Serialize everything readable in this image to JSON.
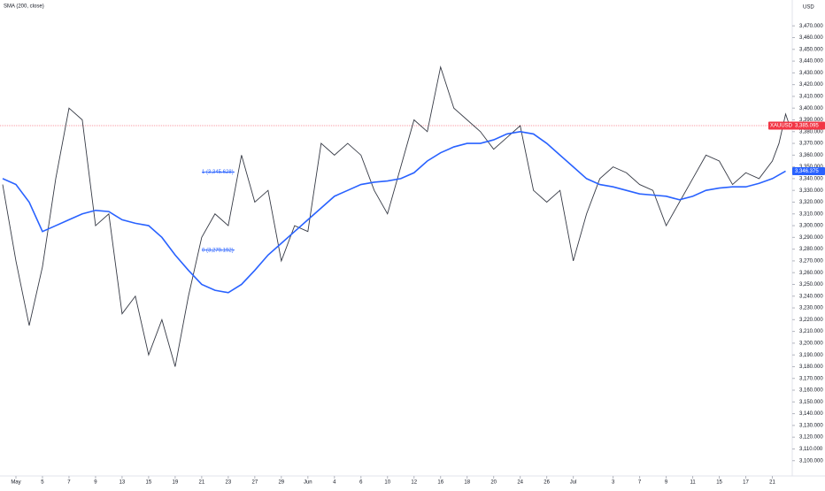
{
  "chart_data": {
    "type": "line",
    "currency": "USD",
    "xlim": [
      -1.2,
      58.5
    ],
    "ylim": [
      3087,
      3492
    ],
    "xticks": [
      {
        "value": 0,
        "label": "May"
      },
      {
        "value": 2,
        "label": "5"
      },
      {
        "value": 4,
        "label": "7"
      },
      {
        "value": 6,
        "label": "9"
      },
      {
        "value": 8,
        "label": "13"
      },
      {
        "value": 10,
        "label": "15"
      },
      {
        "value": 12,
        "label": "19"
      },
      {
        "value": 14,
        "label": "21"
      },
      {
        "value": 16,
        "label": "23"
      },
      {
        "value": 18,
        "label": "27"
      },
      {
        "value": 20,
        "label": "29"
      },
      {
        "value": 22,
        "label": "Jun"
      },
      {
        "value": 24,
        "label": "4"
      },
      {
        "value": 26,
        "label": "6"
      },
      {
        "value": 28,
        "label": "10"
      },
      {
        "value": 30,
        "label": "12"
      },
      {
        "value": 32,
        "label": "16"
      },
      {
        "value": 34,
        "label": "18"
      },
      {
        "value": 36,
        "label": "20"
      },
      {
        "value": 38,
        "label": "24"
      },
      {
        "value": 40,
        "label": "26"
      },
      {
        "value": 42,
        "label": "Jul"
      },
      {
        "value": 45,
        "label": "3"
      },
      {
        "value": 47,
        "label": "7"
      },
      {
        "value": 49,
        "label": "9"
      },
      {
        "value": 51,
        "label": "11"
      },
      {
        "value": 53,
        "label": "15"
      },
      {
        "value": 55,
        "label": "17"
      },
      {
        "value": 57,
        "label": "21"
      }
    ],
    "yticks": [
      {
        "value": 3100,
        "label": "3,100.000"
      },
      {
        "value": 3110,
        "label": "3,110.000"
      },
      {
        "value": 3120,
        "label": "3,120.000"
      },
      {
        "value": 3130,
        "label": "3,130.000"
      },
      {
        "value": 3140,
        "label": "3,140.000"
      },
      {
        "value": 3150,
        "label": "3,150.000"
      },
      {
        "value": 3160,
        "label": "3,160.000"
      },
      {
        "value": 3170,
        "label": "3,170.000"
      },
      {
        "value": 3180,
        "label": "3,180.000"
      },
      {
        "value": 3190,
        "label": "3,190.000"
      },
      {
        "value": 3200,
        "label": "3,200.000"
      },
      {
        "value": 3210,
        "label": "3,210.000"
      },
      {
        "value": 3220,
        "label": "3,220.000"
      },
      {
        "value": 3230,
        "label": "3,230.000"
      },
      {
        "value": 3240,
        "label": "3,240.000"
      },
      {
        "value": 3250,
        "label": "3,250.000"
      },
      {
        "value": 3260,
        "label": "3,260.000"
      },
      {
        "value": 3270,
        "label": "3,270.000"
      },
      {
        "value": 3280,
        "label": "3,280.000"
      },
      {
        "value": 3290,
        "label": "3,290.000"
      },
      {
        "value": 3300,
        "label": "3,300.000"
      },
      {
        "value": 3310,
        "label": "3,310.000"
      },
      {
        "value": 3320,
        "label": "3,320.000"
      },
      {
        "value": 3330,
        "label": "3,330.000"
      },
      {
        "value": 3340,
        "label": "3,340.000"
      },
      {
        "value": 3350,
        "label": "3,350.000"
      },
      {
        "value": 3360,
        "label": "3,360.000"
      },
      {
        "value": 3370,
        "label": "3,370.000"
      },
      {
        "value": 3380,
        "label": "3,380.000"
      },
      {
        "value": 3390,
        "label": "3,390.000"
      },
      {
        "value": 3400,
        "label": "3,400.000"
      },
      {
        "value": 3410,
        "label": "3,410.000"
      },
      {
        "value": 3420,
        "label": "3,420.000"
      },
      {
        "value": 3430,
        "label": "3,430.000"
      },
      {
        "value": 3440,
        "label": "3,440.000"
      },
      {
        "value": 3450,
        "label": "3,450.000"
      },
      {
        "value": 3460,
        "label": "3,460.000"
      },
      {
        "value": 3470,
        "label": "3,470.000"
      }
    ],
    "series": [
      {
        "name": "XAUUSD",
        "color": "#363a45",
        "x": [
          -1,
          0,
          1,
          2,
          3,
          4,
          5,
          6,
          7,
          8,
          9,
          10,
          11,
          12,
          13,
          14,
          15,
          16,
          17,
          18,
          19,
          20,
          21,
          22,
          23,
          24,
          25,
          26,
          27,
          28,
          29,
          30,
          31,
          32,
          33,
          34,
          35,
          36,
          37,
          38,
          39,
          40,
          41,
          42,
          43,
          44,
          45,
          46,
          47,
          48,
          49,
          50,
          51,
          52,
          53,
          54,
          55,
          56,
          57,
          57.5,
          58,
          58.3
        ],
        "values": [
          3335,
          3270,
          3215,
          3265,
          3340,
          3400,
          3390,
          3300,
          3310,
          3225,
          3240,
          3190,
          3220,
          3180,
          3240,
          3290,
          3310,
          3300,
          3360,
          3320,
          3330,
          3270,
          3300,
          3295,
          3370,
          3360,
          3370,
          3360,
          3330,
          3310,
          3350,
          3390,
          3380,
          3435,
          3400,
          3390,
          3380,
          3365,
          3375,
          3385,
          3330,
          3320,
          3330,
          3270,
          3310,
          3340,
          3350,
          3345,
          3335,
          3330,
          3300,
          3320,
          3340,
          3360,
          3355,
          3335,
          3345,
          3340,
          3355,
          3370,
          3395,
          3385
        ],
        "last": {
          "value": 3385.095,
          "label": "3,385.095"
        }
      },
      {
        "name": "SMA (200, close)",
        "color": "#2962ff",
        "x": [
          -1,
          0,
          1,
          2,
          3,
          4,
          5,
          6,
          7,
          8,
          9,
          10,
          11,
          12,
          13,
          14,
          15,
          16,
          17,
          18,
          19,
          20,
          21,
          22,
          23,
          24,
          25,
          26,
          27,
          28,
          29,
          30,
          31,
          32,
          33,
          34,
          35,
          36,
          37,
          38,
          39,
          40,
          41,
          42,
          43,
          44,
          45,
          46,
          47,
          48,
          49,
          50,
          51,
          52,
          53,
          54,
          55,
          56,
          57,
          58
        ],
        "values": [
          3340,
          3335,
          3320,
          3295,
          3300,
          3305,
          3310,
          3313,
          3312,
          3305,
          3302,
          3300,
          3290,
          3275,
          3262,
          3250,
          3245,
          3243,
          3250,
          3262,
          3275,
          3285,
          3295,
          3305,
          3315,
          3325,
          3330,
          3335,
          3337,
          3338,
          3340,
          3345,
          3355,
          3362,
          3367,
          3370,
          3370,
          3373,
          3378,
          3380,
          3378,
          3370,
          3360,
          3350,
          3340,
          3335,
          3333,
          3330,
          3327,
          3326,
          3325,
          3322,
          3325,
          3330,
          3332,
          3333,
          3333,
          3336,
          3340,
          3346.375
        ],
        "last": {
          "value": 3346.375,
          "label": "3,346.375"
        }
      }
    ],
    "fib_levels": [
      {
        "value": 3345.628,
        "label": "1 (3,345.628)"
      },
      {
        "value": 3279.192,
        "label": "0 (3,279.192)"
      }
    ]
  }
}
